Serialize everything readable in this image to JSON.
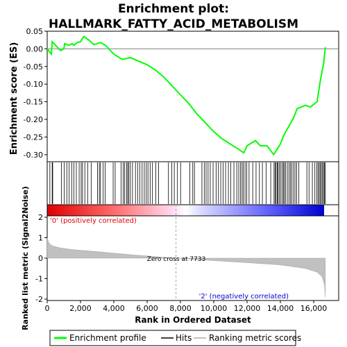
{
  "chart_data": {
    "type": "line",
    "title_line1": "Enrichment plot:",
    "title_line2": "HALLMARK_FATTY_ACID_METABOLISM",
    "es_panel": {
      "ylabel": "Enrichment score (ES)",
      "ylim": [
        -0.32,
        0.05
      ],
      "yticks": [
        0.05,
        0.0,
        -0.05,
        -0.1,
        -0.15,
        -0.2,
        -0.25,
        -0.3
      ],
      "ytick_labels": [
        "0.05",
        "0.00",
        "-0.05",
        "-0.10",
        "-0.15",
        "-0.20",
        "-0.25",
        "-0.30"
      ],
      "series": [
        {
          "name": "Enrichment profile",
          "color": "#00ff00",
          "x": [
            0,
            250,
            300,
            800,
            1000,
            1050,
            1300,
            1500,
            1600,
            1800,
            2000,
            2200,
            2500,
            2800,
            3000,
            3200,
            3500,
            4000,
            4500,
            5000,
            5500,
            6000,
            6500,
            7000,
            7500,
            8000,
            8500,
            9000,
            9500,
            10000,
            10500,
            11000,
            11500,
            11800,
            12000,
            12500,
            12800,
            13200,
            13600,
            13800,
            14000,
            14200,
            14500,
            14800,
            15000,
            15500,
            15800,
            16200,
            16400,
            16600,
            16700
          ],
          "y": [
            0.0,
            -0.015,
            0.02,
            -0.005,
            0.0,
            0.015,
            0.01,
            0.015,
            0.01,
            0.018,
            0.02,
            0.035,
            0.025,
            0.012,
            0.015,
            0.018,
            0.01,
            -0.015,
            -0.03,
            -0.025,
            -0.035,
            -0.045,
            -0.06,
            -0.08,
            -0.105,
            -0.13,
            -0.155,
            -0.185,
            -0.21,
            -0.235,
            -0.255,
            -0.27,
            -0.285,
            -0.295,
            -0.275,
            -0.26,
            -0.275,
            -0.275,
            -0.3,
            -0.285,
            -0.27,
            -0.245,
            -0.22,
            -0.195,
            -0.17,
            -0.16,
            -0.165,
            -0.15,
            -0.09,
            -0.04,
            0.005
          ]
        }
      ]
    },
    "hits_panel": {
      "legend_label": "Hits",
      "hit_positions": [
        160,
        300,
        330,
        850,
        1020,
        1180,
        1320,
        1480,
        1600,
        1750,
        1920,
        2040,
        2120,
        2260,
        2430,
        2640,
        3020,
        3130,
        3200,
        3360,
        3480,
        3960,
        4080,
        4440,
        4560,
        4650,
        4760,
        4830,
        4900,
        4990,
        5120,
        5300,
        5430,
        5560,
        5700,
        5830,
        5950,
        6050,
        6180,
        6320,
        6520,
        6690,
        7280,
        7480,
        7630,
        7820,
        8010,
        8560,
        8740,
        8840,
        9290,
        9430,
        9540,
        9660,
        9790,
        9960,
        10140,
        10280,
        10420,
        10560,
        10710,
        10880,
        11020,
        11210,
        11380,
        11500,
        11600,
        11700,
        11780,
        11880,
        11980,
        12120,
        12340,
        12540,
        12740,
        12920,
        13140,
        13420,
        13620,
        13680,
        13740,
        13810,
        13860,
        13930,
        14010,
        14100,
        14180,
        14240,
        14320,
        14420,
        14520,
        14600,
        14690,
        14790,
        14880,
        14980,
        15110,
        15590,
        15720,
        15920,
        16070,
        16180,
        16260,
        16330,
        16390,
        16460,
        16530,
        16590,
        16650,
        16700
      ]
    },
    "ranked_panel": {
      "ylabel": "Ranked list metric (Signal2Noise)",
      "ylim": [
        -2.0,
        2.0
      ],
      "yticks": [
        2,
        1,
        0,
        -1,
        -2
      ],
      "ytick_labels": [
        "2",
        "1",
        "0",
        "-1",
        "-2"
      ],
      "legend_label": "Ranking metric scores",
      "metric_curve": {
        "x": [
          0,
          100,
          300,
          800,
          1500,
          3000,
          5000,
          7733,
          10000,
          12000,
          14000,
          15500,
          16200,
          16500,
          16650,
          16700
        ],
        "y": [
          1.0,
          0.75,
          0.6,
          0.5,
          0.42,
          0.32,
          0.17,
          0.0,
          -0.12,
          -0.22,
          -0.33,
          -0.5,
          -0.68,
          -0.9,
          -1.3,
          -1.9
        ]
      },
      "zero_cross_label": "Zero cross at 7733",
      "zero_cross_x": 7733,
      "pos_label": "'0' (positively correlated)",
      "neg_label": "'2' (negatively correlated)"
    },
    "x_axis": {
      "xlabel": "Rank in Ordered Dataset",
      "xlim": [
        0,
        17500
      ],
      "xticks": [
        0,
        2000,
        4000,
        6000,
        8000,
        10000,
        12000,
        14000,
        16000
      ],
      "xtick_labels": [
        "0",
        "2,000",
        "4,000",
        "6,000",
        "8,000",
        "10,000",
        "12,000",
        "14,000",
        "16,000"
      ]
    },
    "legend": {
      "entries": [
        {
          "label": "Enrichment profile",
          "color": "#00ff00"
        },
        {
          "label": "Hits",
          "color": "#000000"
        },
        {
          "label": "Ranking metric scores",
          "color": "#c0c0c0"
        }
      ]
    }
  }
}
